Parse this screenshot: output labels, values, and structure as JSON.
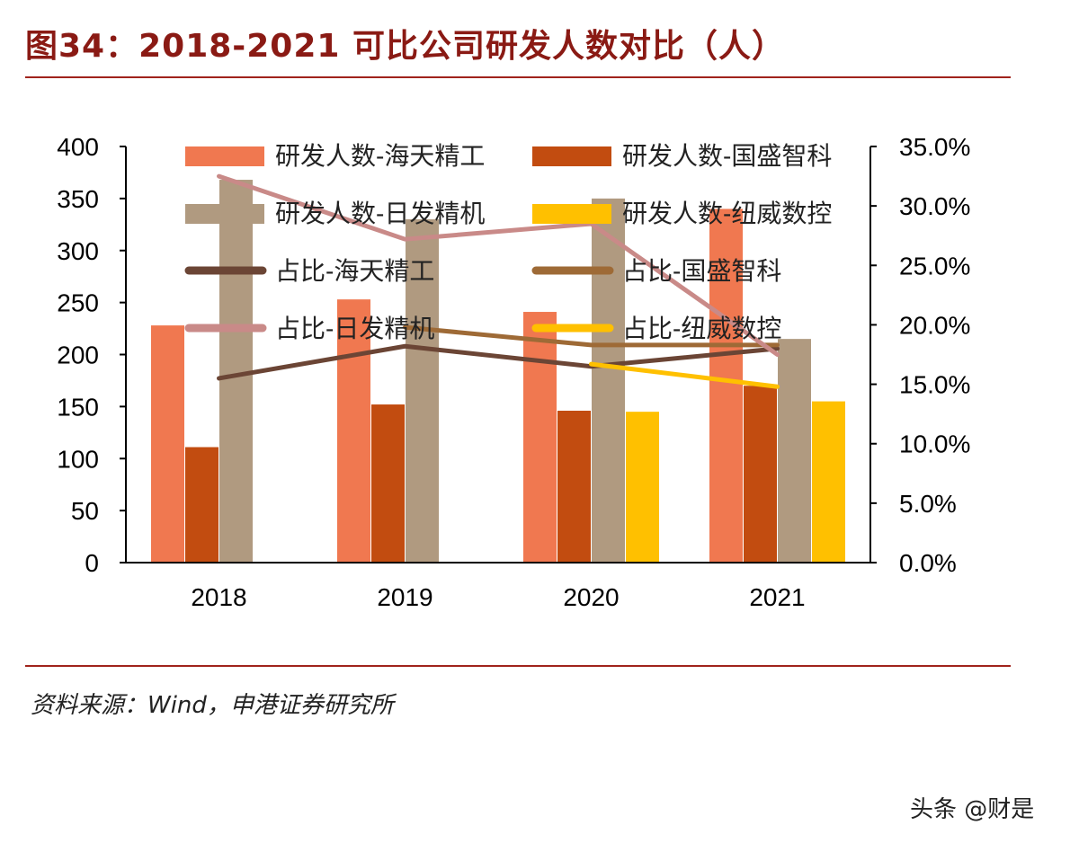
{
  "header": {
    "title": "图34：2018-2021 可比公司研发人数对比（人）"
  },
  "footer": {
    "source": "资料来源：Wind，申港证券研究所",
    "watermark": "头条 @财是"
  },
  "chart_data": {
    "type": "bar",
    "title": "图34：2018-2021 可比公司研发人数对比（人）",
    "categories": [
      "2018",
      "2019",
      "2020",
      "2021"
    ],
    "ylim": [
      0,
      400
    ],
    "yticks": [
      "0",
      "50",
      "100",
      "150",
      "200",
      "250",
      "300",
      "350",
      "400"
    ],
    "y2lim": [
      0,
      35
    ],
    "y2ticks": [
      "0.0%",
      "5.0%",
      "10.0%",
      "15.0%",
      "20.0%",
      "25.0%",
      "30.0%",
      "35.0%"
    ],
    "series": [
      {
        "name": "研发人数-海天精工",
        "type": "bar",
        "color": "#f07850",
        "values": [
          228,
          253,
          241,
          340
        ]
      },
      {
        "name": "研发人数-国盛智科",
        "type": "bar",
        "color": "#c24c10",
        "values": [
          111,
          152,
          146,
          170
        ]
      },
      {
        "name": "研发人数-日发精机",
        "type": "bar",
        "color": "#b09a80",
        "values": [
          368,
          330,
          350,
          215
        ]
      },
      {
        "name": "研发人数-纽威数控",
        "type": "bar",
        "color": "#ffc000",
        "values": [
          null,
          null,
          145,
          155
        ]
      },
      {
        "name": "占比-海天精工",
        "type": "line",
        "axis": "right",
        "color": "#6b4535",
        "values": [
          15.5,
          18.2,
          16.5,
          18.0
        ]
      },
      {
        "name": "占比-国盛智科",
        "type": "line",
        "axis": "right",
        "color": "#9e6a36",
        "values": [
          null,
          19.8,
          18.3,
          18.3
        ]
      },
      {
        "name": "占比-日发精机",
        "type": "line",
        "axis": "right",
        "color": "#c98a88",
        "values": [
          32.5,
          27.2,
          28.5,
          17.5
        ]
      },
      {
        "name": "占比-纽威数控",
        "type": "line",
        "axis": "right",
        "color": "#ffc000",
        "values": [
          null,
          null,
          16.7,
          14.8
        ]
      }
    ],
    "legend": "top-inside, two columns",
    "grid": false
  }
}
